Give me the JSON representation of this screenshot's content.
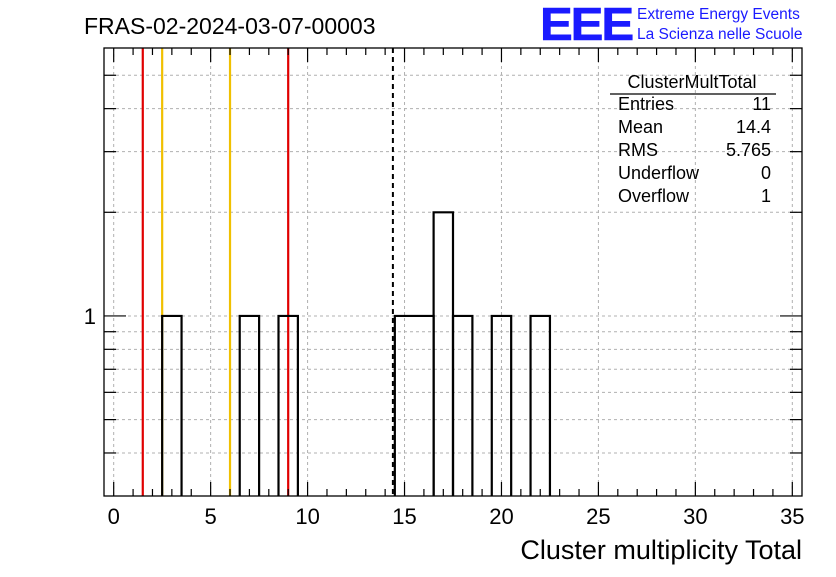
{
  "header": {
    "run_title": "FRAS-02-2024-03-07-00003",
    "logo_text": "EEE",
    "org_line1": "Extreme Energy Events",
    "org_line2": "La Scienza nelle Scuole"
  },
  "colors": {
    "logo_blue": "#1a1aff",
    "red_line": "#e00000",
    "yellow_line": "#f0c000",
    "histogram": "#000000",
    "grid": "#b0b0b0"
  },
  "stats_box": {
    "title": "ClusterMultTotal",
    "rows": [
      {
        "label": "Entries",
        "value": "11"
      },
      {
        "label": "Mean",
        "value": "14.4"
      },
      {
        "label": "RMS",
        "value": "5.765"
      },
      {
        "label": "Underflow",
        "value": "0"
      },
      {
        "label": "Overflow",
        "value": "1"
      }
    ]
  },
  "chart_data": {
    "type": "bar",
    "title": "FRAS-02-2024-03-07-00003",
    "xlabel": "Cluster multiplicity Total",
    "ylabel": "",
    "xlim": [
      -0.5,
      35.5
    ],
    "ylog": true,
    "ylim": [
      0.3,
      6
    ],
    "y_tick_labels": [
      "1"
    ],
    "x_tick_labels": [
      "0",
      "5",
      "10",
      "15",
      "20",
      "25",
      "30",
      "35"
    ],
    "x_ticks": [
      0,
      5,
      10,
      15,
      20,
      25,
      30,
      35
    ],
    "grid": true,
    "bins": [
      {
        "low": 2.5,
        "high": 3.5,
        "count": 1
      },
      {
        "low": 6.5,
        "high": 7.5,
        "count": 1
      },
      {
        "low": 8.5,
        "high": 9.5,
        "count": 1
      },
      {
        "low": 14.5,
        "high": 16.5,
        "count": 1
      },
      {
        "low": 16.5,
        "high": 17.5,
        "count": 2
      },
      {
        "low": 17.5,
        "high": 18.5,
        "count": 1
      },
      {
        "low": 19.5,
        "high": 20.5,
        "count": 1
      },
      {
        "low": 21.5,
        "high": 22.5,
        "count": 1
      }
    ],
    "vertical_lines": [
      {
        "x": 1.5,
        "color": "red"
      },
      {
        "x": 2.5,
        "color": "yellow"
      },
      {
        "x": 6,
        "color": "yellow"
      },
      {
        "x": 9,
        "color": "red"
      },
      {
        "x": 14.4,
        "color": "black-dashed"
      }
    ]
  }
}
